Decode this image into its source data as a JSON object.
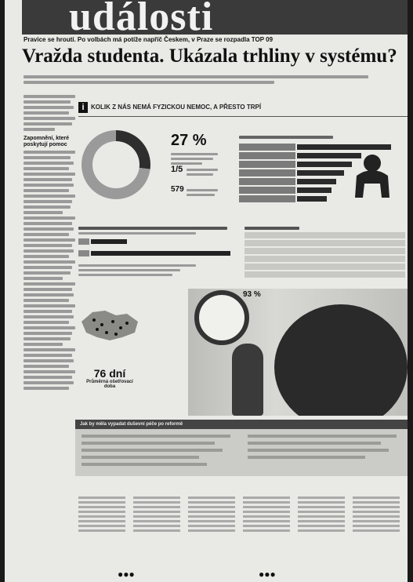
{
  "masthead": {
    "title": "události"
  },
  "topline": {
    "text": "Pravice se hroutí. Po volbách má potíže napříč Českem, v Praze se rozpadla TOP 09"
  },
  "headline": {
    "text": "Vražda studenta. Ukázala trhliny v systému?"
  },
  "sidebar": {
    "heading": "Zapomnění, které poskytují pomoc"
  },
  "infographic": {
    "title": "KOLIK Z NÁS NEMÁ FYZICKOU NEMOC, A PŘESTO TRPÍ",
    "stat_pct": "27 %",
    "stat_fraction": "1/5",
    "stat_count": "579",
    "ring_pct": "93 %",
    "days_value": "76 dní",
    "days_label": "Průměrná ošetřovací doba",
    "bottom_box_title": "Jak by měla vypadat duševní péče po reformě"
  },
  "chart_data": [
    {
      "type": "pie",
      "title": "",
      "values": [
        27,
        73
      ],
      "colors": [
        "#2e2e2e",
        "#9a9a9a"
      ]
    }
  ]
}
